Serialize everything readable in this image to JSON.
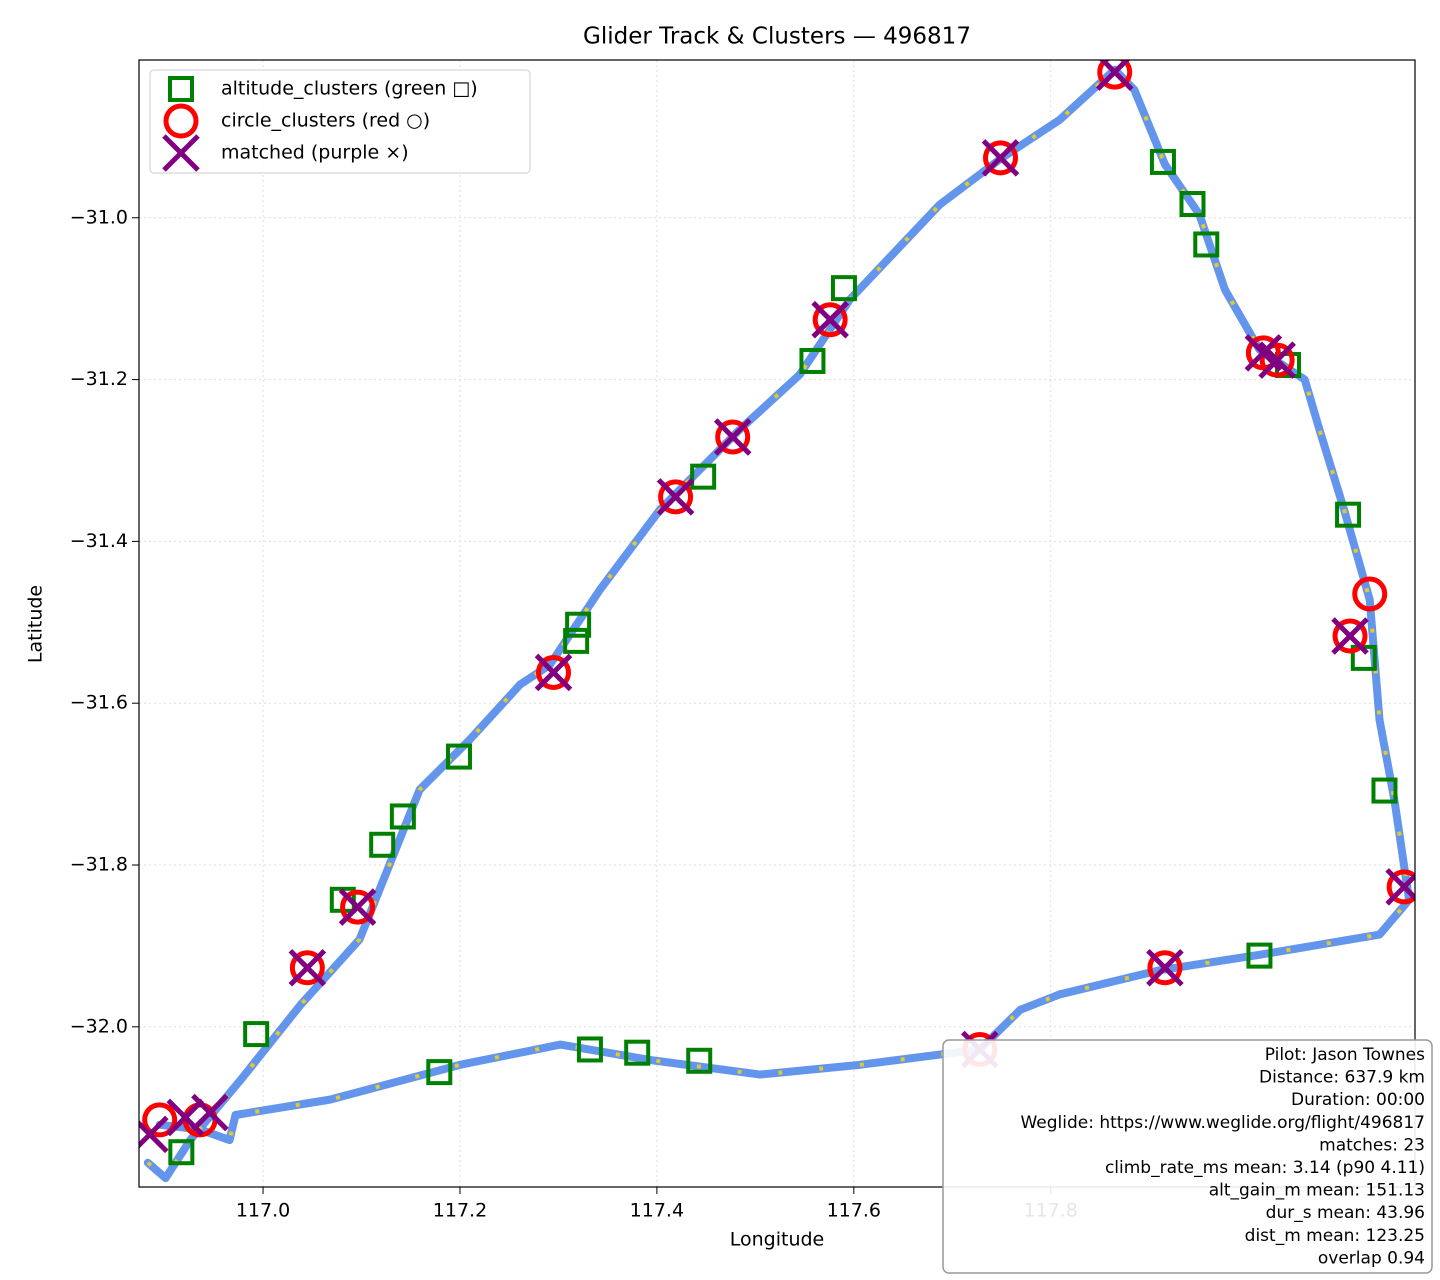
{
  "chart_data": {
    "type": "scatter",
    "title": "Glider Track & Clusters — 496817",
    "x_label": "Longitude",
    "y_label": "Latitude",
    "xlim": [
      116.874,
      118.17
    ],
    "ylim": [
      -32.198,
      -30.805
    ],
    "xticks": [
      {
        "value": 117.0,
        "label": "117.0"
      },
      {
        "value": 117.2,
        "label": "117.2"
      },
      {
        "value": 117.4,
        "label": "117.4"
      },
      {
        "value": 117.6,
        "label": "117.6"
      },
      {
        "value": 117.8,
        "label": "117.8"
      }
    ],
    "yticks": [
      {
        "value": -31.0,
        "label": "−31.0"
      },
      {
        "value": -31.2,
        "label": "−31.2"
      },
      {
        "value": -31.4,
        "label": "−31.4"
      },
      {
        "value": -31.6,
        "label": "−31.6"
      },
      {
        "value": -31.8,
        "label": "−31.8"
      },
      {
        "value": -32.0,
        "label": "−32.0"
      }
    ],
    "grid": true,
    "legend": "upper left",
    "track": {
      "color": "#6495ed",
      "accent": "#ffd700",
      "x": [
        116.883,
        116.901,
        116.926,
        116.977,
        117.038,
        117.098,
        117.159,
        117.21,
        117.261,
        117.291,
        117.342,
        117.403,
        117.484,
        117.545,
        117.596,
        117.687,
        117.748,
        117.809,
        117.865,
        117.885,
        117.916,
        117.951,
        117.977,
        118.012,
        118.058,
        118.073,
        118.098,
        118.124,
        118.134,
        118.149,
        118.164,
        118.134,
        118.012,
        117.911,
        117.809,
        117.769,
        117.728,
        117.606,
        117.505,
        117.393,
        117.302,
        117.2,
        117.068,
        116.972,
        116.966,
        116.936,
        116.895
      ],
      "y": [
        -32.168,
        -32.187,
        -32.14,
        -32.066,
        -31.973,
        -31.892,
        -31.707,
        -31.645,
        -31.577,
        -31.553,
        -31.46,
        -31.361,
        -31.262,
        -31.194,
        -31.101,
        -30.984,
        -30.928,
        -30.879,
        -30.817,
        -30.842,
        -30.934,
        -30.996,
        -31.089,
        -31.163,
        -31.2,
        -31.262,
        -31.361,
        -31.472,
        -31.621,
        -31.719,
        -31.843,
        -31.886,
        -31.911,
        -31.93,
        -31.96,
        -31.979,
        -32.028,
        -32.047,
        -32.059,
        -32.041,
        -32.022,
        -32.047,
        -32.09,
        -32.109,
        -32.14,
        -32.127,
        -32.121
      ]
    },
    "series": [
      {
        "name": "altitude_clusters (green □)",
        "color": "#008000",
        "marker": "square",
        "x": [
          116.917,
          116.993,
          117.081,
          117.121,
          117.142,
          117.199,
          117.32,
          117.318,
          117.447,
          117.558,
          117.59,
          117.914,
          117.944,
          117.958,
          118.041,
          118.102,
          118.118,
          118.139,
          118.012,
          117.332,
          117.38,
          117.443,
          117.179
        ],
        "y": [
          -32.155,
          -32.009,
          -31.843,
          -31.775,
          -31.74,
          -31.666,
          -31.503,
          -31.523,
          -31.32,
          -31.177,
          -31.087,
          -30.931,
          -30.983,
          -31.033,
          -31.182,
          -31.367,
          -31.544,
          -31.708,
          -31.912,
          -32.028,
          -32.032,
          -32.042,
          -32.056
        ]
      },
      {
        "name": "circle_clusters (red ○)",
        "color": "#ff0000",
        "marker": "circle",
        "x": [
          116.895,
          116.936,
          117.045,
          117.096,
          117.295,
          117.419,
          117.477,
          117.576,
          117.749,
          117.865,
          118.016,
          118.03,
          118.124,
          118.104,
          118.159,
          117.916,
          117.728
        ],
        "y": [
          -32.115,
          -32.115,
          -31.927,
          -31.852,
          -31.562,
          -31.345,
          -31.271,
          -31.126,
          -30.926,
          -30.82,
          -31.167,
          -31.176,
          -31.465,
          -31.517,
          -31.827,
          -31.927,
          -32.028
        ]
      },
      {
        "name": "matched (purple ×)",
        "color": "#800080",
        "marker": "x",
        "x": [
          116.885,
          116.921,
          116.946,
          117.045,
          117.096,
          117.295,
          117.419,
          117.477,
          117.576,
          117.749,
          117.865,
          118.016,
          118.03,
          118.104,
          118.159,
          117.916,
          117.728
        ],
        "y": [
          -32.133,
          -32.112,
          -32.106,
          -31.927,
          -31.852,
          -31.562,
          -31.345,
          -31.271,
          -31.126,
          -30.926,
          -30.82,
          -31.167,
          -31.176,
          -31.517,
          -31.827,
          -31.927,
          -32.028
        ]
      }
    ],
    "annotations": [
      "Pilot: Jason Townes",
      "Distance: 637.9 km",
      "Duration: 00:00",
      "Weglide: https://www.weglide.org/flight/496817",
      "matches: 23",
      "climb_rate_ms mean: 3.14 (p90 4.11)",
      "alt_gain_m mean: 151.13",
      "dur_s mean: 43.96",
      "dist_m mean: 123.25",
      "overlap 0.94"
    ]
  }
}
